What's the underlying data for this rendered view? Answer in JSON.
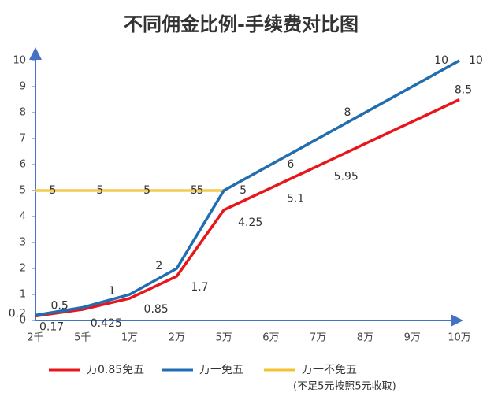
{
  "chart_data": {
    "type": "line",
    "title": "不同佣金比例-手续费对比图",
    "categories": [
      "2千",
      "5千",
      "1万",
      "2万",
      "5万",
      "6万",
      "7万",
      "8万",
      "9万",
      "10万"
    ],
    "ylim": [
      0,
      10
    ],
    "yticks": [
      0,
      1,
      2,
      3,
      4,
      5,
      6,
      7,
      8,
      9,
      10
    ],
    "series": [
      {
        "name": "万0.85免五",
        "color": "#e8161b",
        "values": [
          0.17,
          0.425,
          0.85,
          1.7,
          4.25,
          5.1,
          5.95,
          6.8,
          7.65,
          8.5
        ],
        "value_labels": [
          "0.17",
          "0.425",
          "0.85",
          "1.7",
          "4.25",
          "5.1",
          "5.95",
          null,
          null,
          "8.5"
        ]
      },
      {
        "name": "万一免五",
        "color": "#1f6db5",
        "values": [
          0.2,
          0.5,
          1,
          2,
          5,
          6,
          7,
          8,
          9,
          10
        ],
        "value_labels": [
          "0.2",
          "0.5",
          "1",
          "2",
          "5",
          null,
          null,
          "8",
          null,
          "10"
        ]
      },
      {
        "name": "万一不免五",
        "color": "#f2c230",
        "values": [
          5,
          5,
          5,
          5,
          5,
          6,
          7,
          8,
          9,
          10
        ],
        "value_labels": [
          "5",
          "5",
          "5",
          "5",
          "5",
          "6",
          null,
          null,
          null,
          "10"
        ]
      }
    ],
    "legend_note": "(不足5元按照5元收取)"
  }
}
